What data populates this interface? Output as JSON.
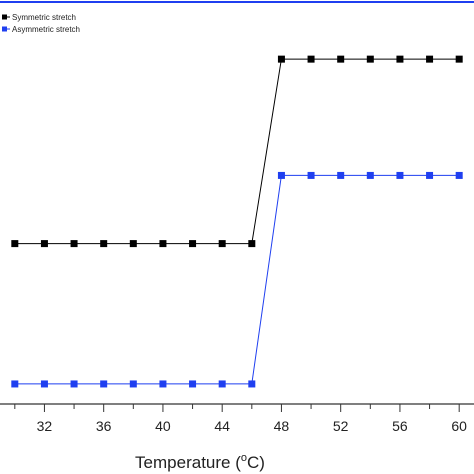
{
  "chart_data": {
    "type": "line",
    "title": "",
    "xlabel": "Temperature (",
    "xlabel_unit": "oC",
    "xlabel_close": ")",
    "ylabel": "",
    "xlim": [
      29,
      61
    ],
    "ylim": [
      0,
      1
    ],
    "x_ticks": [
      32,
      36,
      40,
      44,
      48,
      52,
      56,
      60
    ],
    "x_tick_labels": [
      "32",
      "36",
      "40",
      "44",
      "48",
      "52",
      "56",
      "60"
    ],
    "y_axis_values_shown": false,
    "grid": false,
    "legend_position": "top-left",
    "x": [
      30,
      32,
      34,
      36,
      38,
      40,
      42,
      44,
      46,
      48,
      50,
      52,
      54,
      56,
      58,
      60
    ],
    "series": [
      {
        "name": "Symmetric stretch",
        "color": "#000000",
        "values": [
          0.4,
          0.4,
          0.4,
          0.4,
          0.4,
          0.4,
          0.4,
          0.4,
          0.4,
          0.86,
          0.86,
          0.86,
          0.86,
          0.86,
          0.86,
          0.86
        ]
      },
      {
        "name": "Asymmetric stretch",
        "color": "#1f3ff0",
        "values": [
          0.05,
          0.05,
          0.05,
          0.05,
          0.05,
          0.05,
          0.05,
          0.05,
          0.05,
          0.57,
          0.57,
          0.57,
          0.57,
          0.57,
          0.57,
          0.57
        ]
      }
    ]
  },
  "colors": {
    "frame": "#1f3ff0",
    "axis": "#333333"
  }
}
